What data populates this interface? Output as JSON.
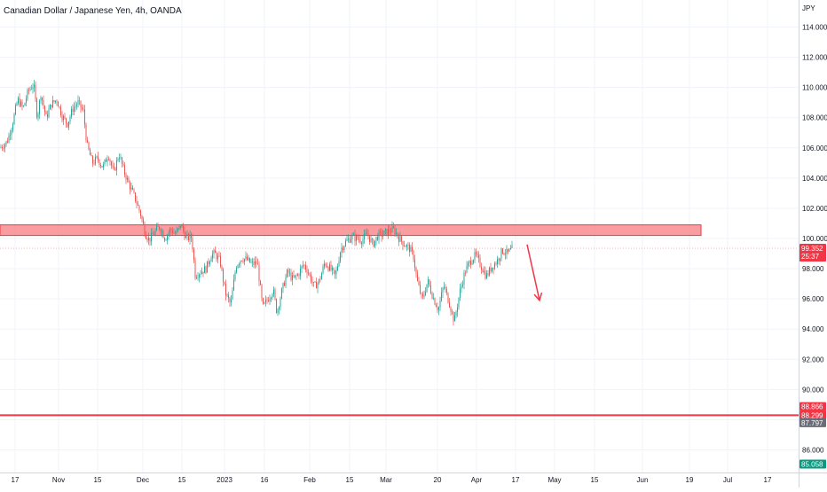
{
  "chart_data": {
    "type": "candlestick",
    "title": "Canadian Dollar / Japanese Yen, 4h, OANDA",
    "currency_label": "JPY",
    "ylim": [
      84.0,
      116.0
    ],
    "y_ticks": [
      "114.000",
      "112.000",
      "110.000",
      "108.000",
      "106.000",
      "104.000",
      "102.000",
      "100.000",
      "98.000",
      "96.000",
      "94.000",
      "92.000",
      "90.000",
      "88.000",
      "86.000"
    ],
    "y_tick_values": [
      114,
      112,
      110,
      108,
      106,
      104,
      102,
      100,
      98,
      96,
      94,
      92,
      90,
      88,
      86
    ],
    "x_ticks": [
      {
        "label": "17",
        "t": 17
      },
      {
        "label": "Nov",
        "t": 66
      },
      {
        "label": "15",
        "t": 110
      },
      {
        "label": "Dec",
        "t": 161
      },
      {
        "label": "15",
        "t": 205
      },
      {
        "label": "2023",
        "t": 253
      },
      {
        "label": "16",
        "t": 298
      },
      {
        "label": "Feb",
        "t": 349
      },
      {
        "label": "15",
        "t": 394
      },
      {
        "label": "Mar",
        "t": 435
      },
      {
        "label": "20",
        "t": 493
      },
      {
        "label": "Apr",
        "t": 537
      },
      {
        "label": "17",
        "t": 581
      },
      {
        "label": "May",
        "t": 625
      },
      {
        "label": "15",
        "t": 670
      },
      {
        "label": "Jun",
        "t": 724
      },
      {
        "label": "19",
        "t": 777
      },
      {
        "label": "Jul",
        "t": 820
      },
      {
        "label": "17",
        "t": 865
      }
    ],
    "x_range": [
      0,
      900
    ],
    "path": [
      [
        0,
        106.0
      ],
      [
        8,
        106.4
      ],
      [
        14,
        107.6
      ],
      [
        20,
        109.2
      ],
      [
        26,
        108.6
      ],
      [
        32,
        109.8
      ],
      [
        38,
        110.2
      ],
      [
        42,
        108.0
      ],
      [
        46,
        109.6
      ],
      [
        52,
        108.0
      ],
      [
        58,
        108.9
      ],
      [
        64,
        109.2
      ],
      [
        70,
        108.1
      ],
      [
        76,
        107.6
      ],
      [
        82,
        108.6
      ],
      [
        88,
        109.0
      ],
      [
        94,
        108.4
      ],
      [
        98,
        106.2
      ],
      [
        104,
        105.0
      ],
      [
        110,
        105.3
      ],
      [
        116,
        104.7
      ],
      [
        122,
        105.6
      ],
      [
        128,
        104.3
      ],
      [
        134,
        105.6
      ],
      [
        140,
        104.4
      ],
      [
        146,
        103.5
      ],
      [
        152,
        102.7
      ],
      [
        158,
        101.7
      ],
      [
        164,
        100.3
      ],
      [
        168,
        99.9
      ],
      [
        174,
        100.4
      ],
      [
        180,
        100.8
      ],
      [
        186,
        100.0
      ],
      [
        192,
        100.6
      ],
      [
        198,
        100.3
      ],
      [
        204,
        100.9
      ],
      [
        210,
        100.0
      ],
      [
        216,
        100.1
      ],
      [
        220,
        97.6
      ],
      [
        226,
        97.8
      ],
      [
        232,
        98.0
      ],
      [
        238,
        98.9
      ],
      [
        242,
        99.0
      ],
      [
        248,
        98.5
      ],
      [
        254,
        96.4
      ],
      [
        260,
        95.6
      ],
      [
        266,
        98.2
      ],
      [
        272,
        98.7
      ],
      [
        278,
        98.6
      ],
      [
        284,
        98.3
      ],
      [
        290,
        98.4
      ],
      [
        296,
        95.4
      ],
      [
        302,
        96.0
      ],
      [
        308,
        96.6
      ],
      [
        312,
        95.1
      ],
      [
        318,
        96.6
      ],
      [
        324,
        97.8
      ],
      [
        330,
        97.3
      ],
      [
        336,
        97.6
      ],
      [
        342,
        98.3
      ],
      [
        348,
        97.7
      ],
      [
        354,
        96.8
      ],
      [
        360,
        97.2
      ],
      [
        366,
        98.4
      ],
      [
        372,
        98.0
      ],
      [
        378,
        97.5
      ],
      [
        384,
        99.3
      ],
      [
        390,
        99.8
      ],
      [
        396,
        100.1
      ],
      [
        402,
        100.0
      ],
      [
        408,
        99.9
      ],
      [
        414,
        100.3
      ],
      [
        420,
        99.6
      ],
      [
        426,
        100.2
      ],
      [
        432,
        100.3
      ],
      [
        438,
        100.5
      ],
      [
        444,
        100.6
      ],
      [
        450,
        100.0
      ],
      [
        456,
        99.6
      ],
      [
        462,
        99.3
      ],
      [
        466,
        98.8
      ],
      [
        470,
        97.2
      ],
      [
        476,
        95.9
      ],
      [
        482,
        97.2
      ],
      [
        488,
        96.1
      ],
      [
        494,
        95.3
      ],
      [
        500,
        96.9
      ],
      [
        506,
        95.8
      ],
      [
        512,
        94.5
      ],
      [
        518,
        96.4
      ],
      [
        524,
        97.8
      ],
      [
        530,
        98.5
      ],
      [
        536,
        98.9
      ],
      [
        542,
        98.2
      ],
      [
        548,
        97.5
      ],
      [
        554,
        98.1
      ],
      [
        560,
        98.5
      ],
      [
        566,
        99.2
      ],
      [
        572,
        99.0
      ],
      [
        578,
        99.35
      ]
    ],
    "resistance_zone": {
      "low": 100.2,
      "high": 100.9,
      "t_end": 790,
      "color": "#f77c80"
    },
    "support_line": {
      "value": 88.3,
      "color": "#f23645"
    },
    "current_price_line": {
      "value": 99.352
    },
    "arrow": {
      "start": [
        594,
        99.6
      ],
      "end": [
        608,
        95.9
      ],
      "color": "#f23645"
    },
    "price_tags": [
      {
        "value": 99.352,
        "label": "99.352",
        "sub": "25:37",
        "color": "#f23645"
      },
      {
        "value": 88.866,
        "label": "88.866",
        "sub": "",
        "color": "#f23645"
      },
      {
        "value": 88.299,
        "label": "88.299",
        "sub": "",
        "color": "#f23645"
      },
      {
        "value": 87.797,
        "label": "87.797",
        "sub": "",
        "color": "#6a6d78"
      },
      {
        "value": 85.058,
        "label": "85.058",
        "sub": "",
        "color": "#089981"
      }
    ],
    "colors": {
      "up": "#26a69a",
      "down": "#ef5350",
      "grid": "#f0f3fa",
      "axis_border": "#d1d4dc"
    }
  }
}
